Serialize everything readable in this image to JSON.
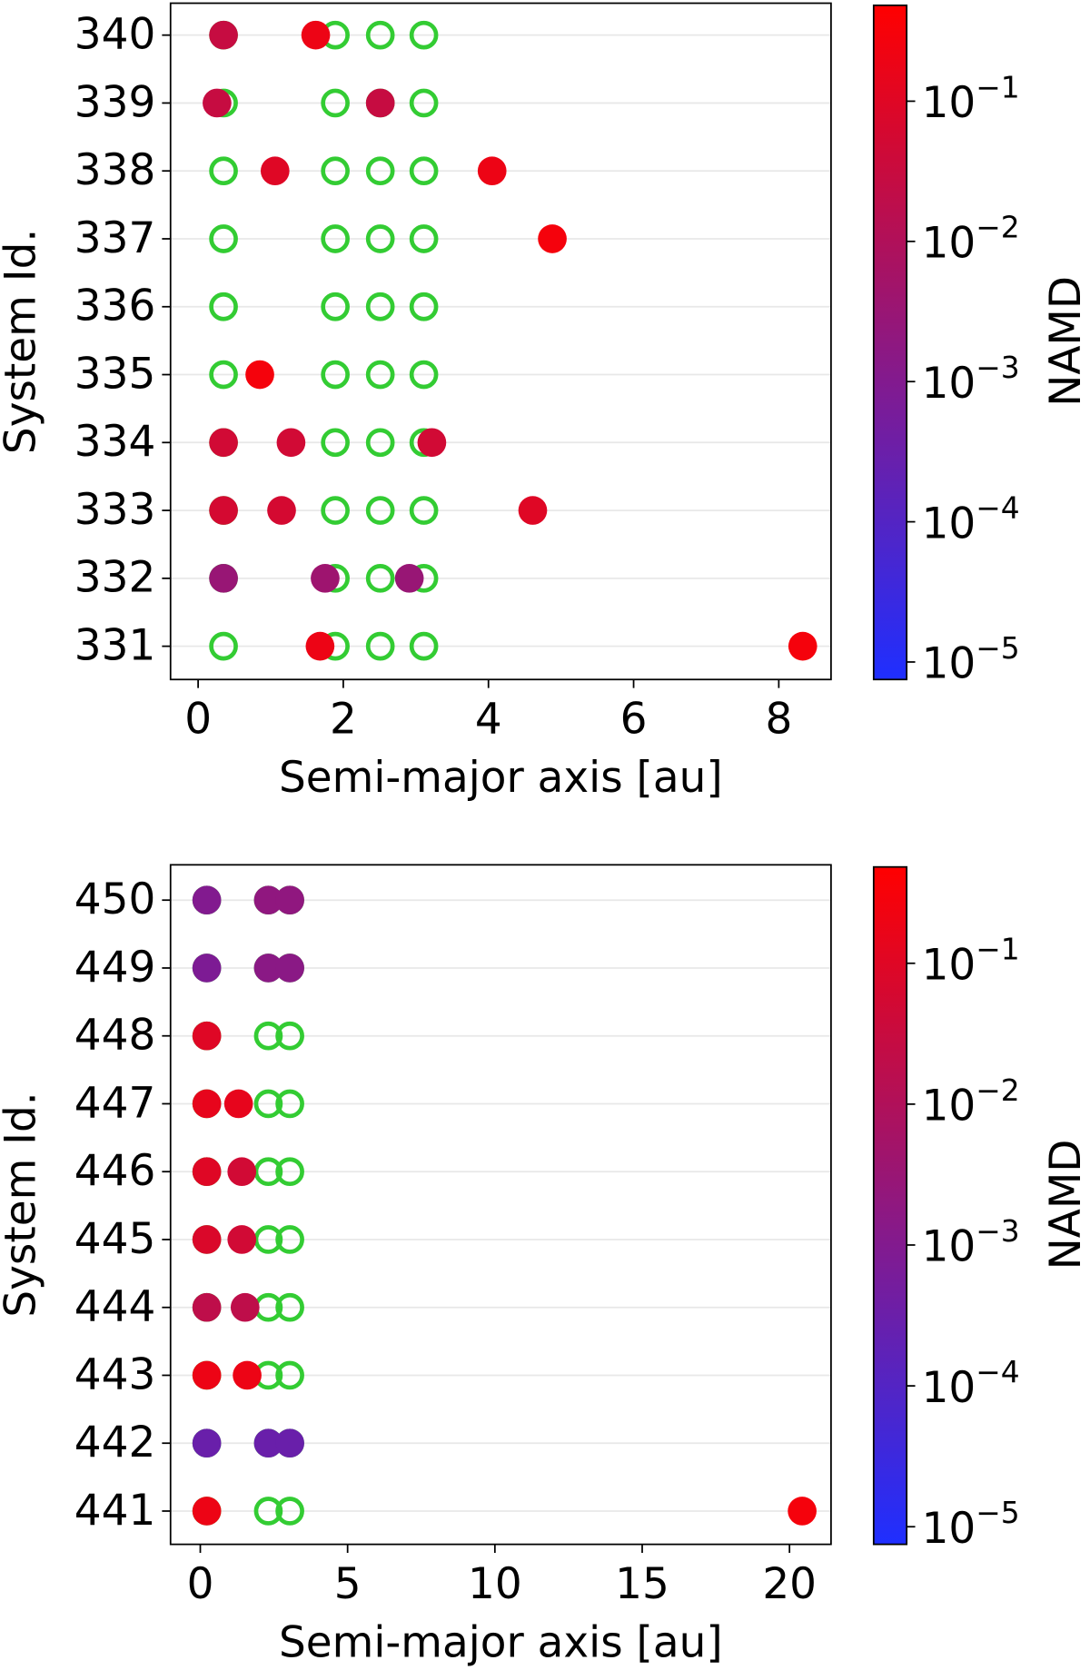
{
  "chart_data": [
    {
      "type": "scatter",
      "xlabel": "Semi-major axis [au]",
      "ylabel": "System Id.",
      "colorbar_label": "NAMD",
      "xlim": [
        -0.38,
        8.72
      ],
      "xticks": [
        0,
        2,
        4,
        6,
        8
      ],
      "ylim": [
        330.51,
        340.47
      ],
      "yticks": [
        331,
        332,
        333,
        334,
        335,
        336,
        337,
        338,
        339,
        340
      ],
      "grid": true,
      "clim": [
        7.5e-06,
        0.5
      ],
      "log_color": true,
      "cmap": [
        "#1f2fff",
        "#ff0000"
      ],
      "cticks": [
        {
          "value": 1e-05,
          "label": "10−5"
        },
        {
          "value": 0.0001,
          "label": "10−4"
        },
        {
          "value": 0.001,
          "label": "10−3"
        },
        {
          "value": 0.01,
          "label": "10−2"
        },
        {
          "value": 0.1,
          "label": "10−1"
        }
      ],
      "series": [
        {
          "color": "#33cc33",
          "filled": false,
          "x": [
            0.35,
            1.89,
            2.51,
            3.11,
            0.35,
            1.89,
            2.51,
            3.11,
            0.35,
            1.89,
            2.51,
            3.11,
            0.35,
            1.89,
            2.51,
            3.11,
            0.35,
            1.89,
            2.51,
            3.11,
            0.35,
            1.89,
            2.51,
            3.11,
            0.35,
            1.89,
            2.51,
            3.11,
            0.35,
            1.89,
            2.51,
            3.11,
            0.35,
            1.89,
            2.51,
            3.11,
            0.35,
            1.89,
            2.51,
            3.11
          ],
          "y": [
            340,
            340,
            340,
            340,
            339,
            339,
            339,
            339,
            338,
            338,
            338,
            338,
            337,
            337,
            337,
            337,
            336,
            336,
            336,
            336,
            335,
            335,
            335,
            335,
            334,
            334,
            334,
            334,
            333,
            333,
            333,
            333,
            332,
            332,
            332,
            332,
            331,
            331,
            331,
            331
          ]
        },
        {
          "filled": true,
          "x": [
            0.35,
            1.62,
            0.26,
            2.51,
            1.06,
            4.05,
            4.88,
            0.85,
            0.35,
            1.28,
            3.22,
            0.35,
            1.15,
            4.61,
            0.35,
            1.75,
            2.91,
            1.68,
            8.33
          ],
          "y": [
            340,
            340,
            339,
            339,
            338,
            338,
            337,
            335,
            334,
            334,
            334,
            333,
            333,
            333,
            332,
            332,
            332,
            331,
            331
          ],
          "c": [
            0.03,
            0.2,
            0.03,
            0.03,
            0.1,
            0.2,
            0.3,
            0.3,
            0.05,
            0.05,
            0.05,
            0.06,
            0.06,
            0.1,
            0.003,
            0.004,
            0.003,
            0.2,
            0.3
          ]
        }
      ]
    },
    {
      "type": "scatter",
      "xlabel": "Semi-major axis [au]",
      "ylabel": "System Id.",
      "colorbar_label": "NAMD",
      "xlim": [
        -1.01,
        21.41
      ],
      "xticks": [
        0,
        5,
        10,
        15,
        20
      ],
      "ylim": [
        440.51,
        450.52
      ],
      "yticks": [
        441,
        442,
        443,
        444,
        445,
        446,
        447,
        448,
        449,
        450
      ],
      "grid": true,
      "clim": [
        7.5e-06,
        0.5
      ],
      "log_color": true,
      "cmap": [
        "#1f2fff",
        "#ff0000"
      ],
      "cticks": [
        {
          "value": 1e-05,
          "label": "10−5"
        },
        {
          "value": 0.0001,
          "label": "10−4"
        },
        {
          "value": 0.001,
          "label": "10−3"
        },
        {
          "value": 0.01,
          "label": "10−2"
        },
        {
          "value": 0.1,
          "label": "10−1"
        }
      ],
      "series": [
        {
          "color": "#33cc33",
          "filled": false,
          "x": [
            0.22,
            2.31,
            3.04,
            0.22,
            2.31,
            3.04,
            0.22,
            2.31,
            3.04,
            0.22,
            2.31,
            3.04,
            0.22,
            2.31,
            3.04,
            0.22,
            2.31,
            3.04,
            0.22,
            2.31,
            3.04,
            0.22,
            2.31,
            3.04,
            0.22,
            2.31,
            3.04,
            0.22,
            2.31,
            3.04
          ],
          "y": [
            450,
            450,
            450,
            449,
            449,
            449,
            448,
            448,
            448,
            447,
            447,
            447,
            446,
            446,
            446,
            445,
            445,
            445,
            444,
            444,
            444,
            443,
            443,
            443,
            442,
            442,
            442,
            441,
            441,
            441
          ]
        },
        {
          "filled": true,
          "x": [
            0.22,
            2.31,
            3.04,
            0.22,
            2.31,
            3.04,
            0.22,
            0.22,
            1.3,
            0.22,
            1.41,
            0.22,
            1.41,
            0.22,
            1.52,
            0.22,
            1.59,
            0.22,
            2.31,
            3.04,
            0.22,
            20.43
          ],
          "y": [
            450,
            450,
            450,
            449,
            449,
            449,
            448,
            447,
            447,
            446,
            446,
            445,
            445,
            444,
            444,
            443,
            443,
            442,
            442,
            442,
            441,
            441
          ],
          "c": [
            0.001,
            0.002,
            0.002,
            0.0008,
            0.0015,
            0.0015,
            0.1,
            0.15,
            0.15,
            0.1,
            0.05,
            0.08,
            0.05,
            0.02,
            0.02,
            0.2,
            0.2,
            0.0003,
            0.0003,
            0.0003,
            0.2,
            0.3
          ]
        }
      ]
    }
  ]
}
